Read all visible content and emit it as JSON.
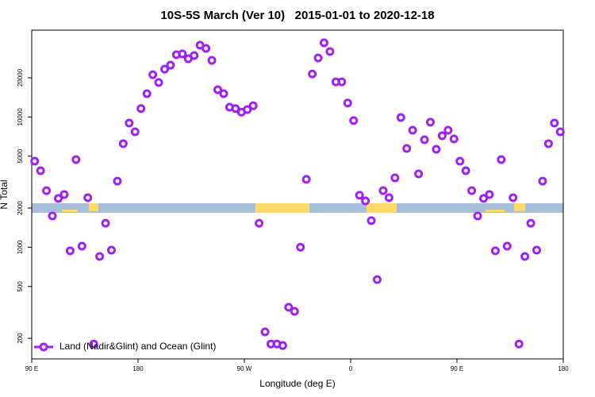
{
  "chart_data": {
    "type": "scatter",
    "title": "10S-5S March (Ver 10)   2015-01-01 to 2020-12-18",
    "x_label": "Longitude (deg E)",
    "y_label": "N Total",
    "xlim": [
      90,
      540
    ],
    "xticks": [
      {
        "value": 90,
        "label": "90 E"
      },
      180,
      {
        "value": 270,
        "label": "90 W"
      },
      {
        "value": 360,
        "label": "0"
      },
      {
        "value": 450,
        "label": "90 E"
      },
      {
        "value": 540,
        "label": "180"
      }
    ],
    "ylim": [
      139,
      46400
    ],
    "yticks": [
      200,
      500,
      1000,
      2000,
      5000,
      10000,
      20000
    ],
    "log_y": true,
    "legend_position": "bottom left",
    "series": [
      {
        "name": "Land (Nadir&Glint) and Ocean (Glint)",
        "color": "#a020f0",
        "x": [
          92.5,
          97.5,
          102.5,
          107.5,
          112.5,
          117.5,
          122.5,
          127.5,
          132.5,
          137.5,
          142.5,
          147.5,
          152.5,
          157.5,
          162.5,
          167.5,
          172.5,
          177.5,
          182.5,
          187.5,
          192.5,
          197.5,
          202.5,
          207.5,
          212.5,
          217.5,
          222.5,
          227.5,
          232.5,
          237.5,
          242.5,
          247.5,
          252.5,
          257.5,
          262.5,
          267.5,
          272.5,
          277.5,
          282.5,
          287.5,
          292.5,
          297.5,
          302.5,
          307.5,
          312.5,
          317.5,
          322.5,
          327.5,
          332.5,
          337.5,
          342.5,
          347.5,
          352.5,
          357.5,
          362.5,
          367.5,
          372.5,
          377.5,
          382.5,
          387.5,
          392.5,
          397.5,
          402.5,
          407.5,
          412.5,
          417.5,
          422.5,
          427.5,
          432.5,
          437.5,
          442.5,
          447.5,
          452.5,
          457.5,
          462.5,
          467.5,
          472.5,
          477.5,
          482.5,
          487.5,
          492.5,
          497.5,
          502.5,
          507.5,
          512.5,
          517.5,
          522.5,
          527.5,
          532.5,
          537.5
        ],
        "values": [
          4580,
          3870,
          2720,
          1740,
          2370,
          2540,
          940,
          4710,
          1020,
          2400,
          181,
          850,
          1530,
          950,
          3220,
          6240,
          8980,
          7700,
          11600,
          15100,
          21100,
          18400,
          23300,
          25000,
          30100,
          30500,
          28000,
          29600,
          35600,
          33600,
          27200,
          16200,
          15100,
          11900,
          11600,
          10900,
          11400,
          12200,
          1530,
          224,
          181,
          181,
          176,
          346,
          322,
          1000,
          3320,
          21400,
          28400,
          37100,
          31800,
          18600,
          18600,
          12800,
          9380,
          2510,
          2270,
          1600,
          565,
          2720,
          2400,
          3410,
          9910,
          5730,
          7920,
          3660,
          6690,
          9120,
          5650,
          7180,
          7920,
          6780,
          4580,
          3870,
          2720,
          1740,
          2370,
          2540,
          940,
          4710,
          1020,
          2400,
          181,
          850,
          1530,
          950,
          3220,
          6240,
          8980,
          7700
        ]
      }
    ]
  }
}
